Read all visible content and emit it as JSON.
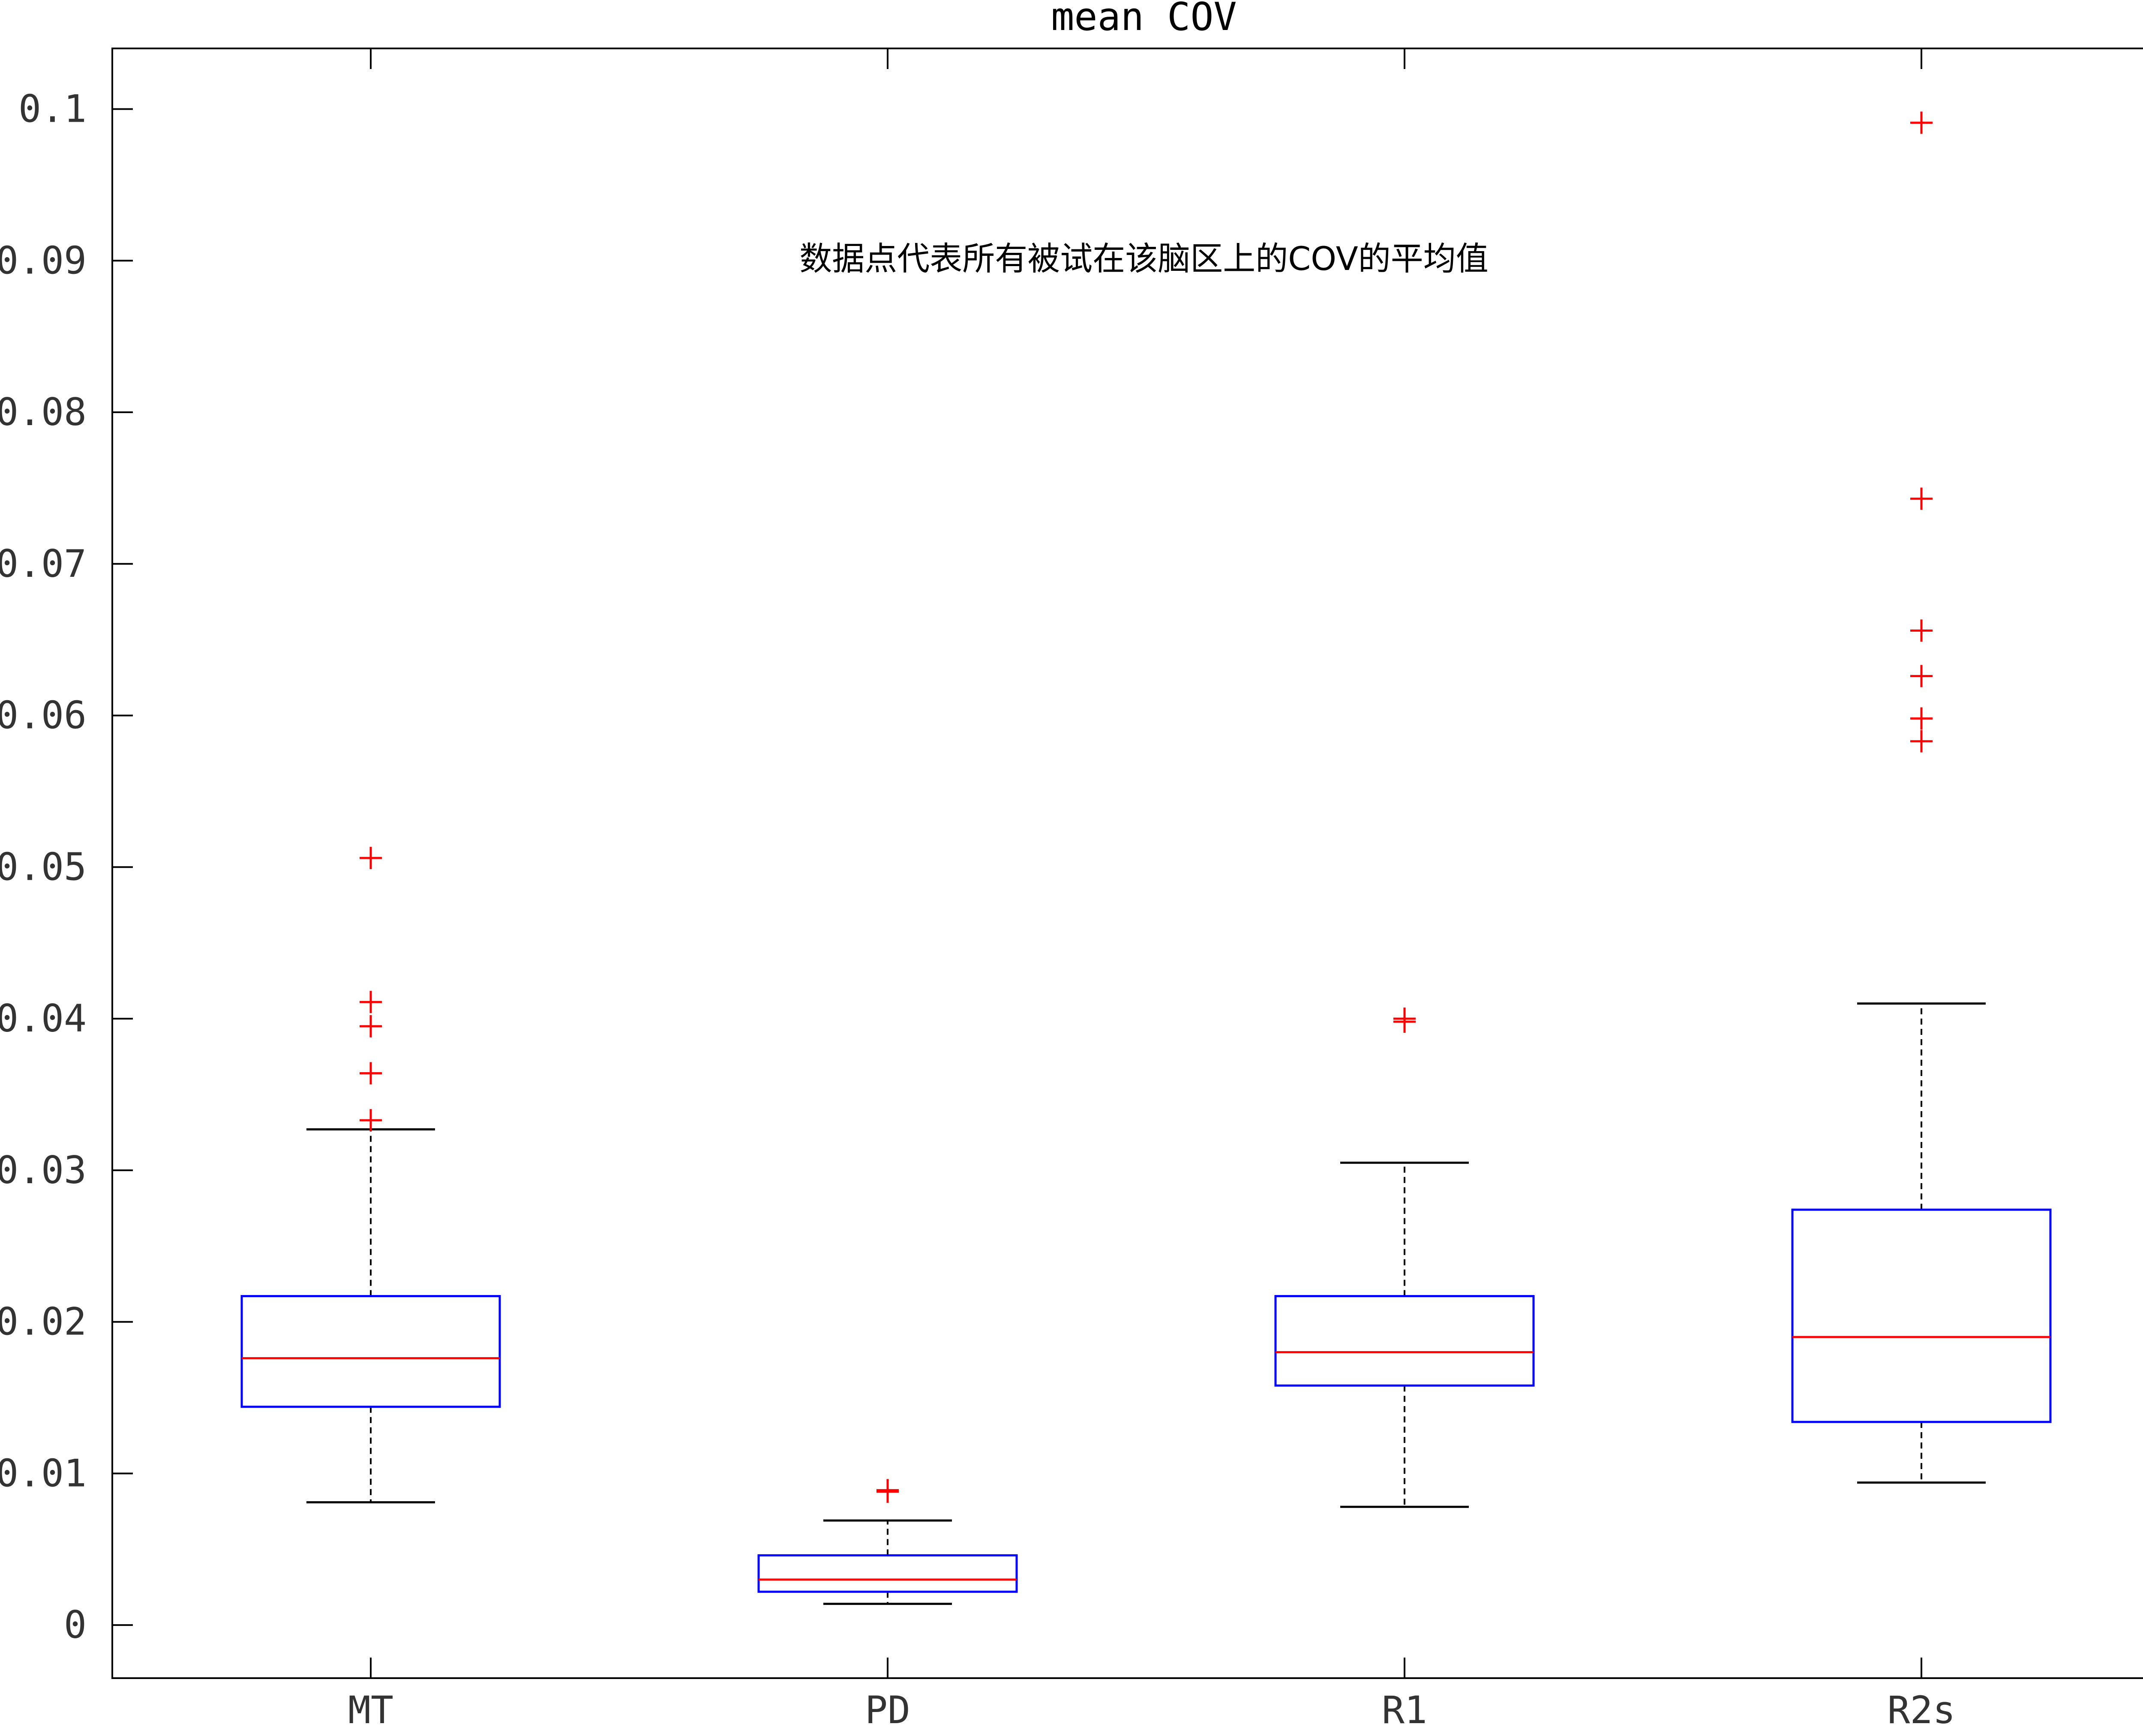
{
  "chart_data": {
    "type": "boxplot",
    "title": "mean COV",
    "annotation": "数据点代表所有被试在该脑区上的COV的平均值",
    "xlabel": "",
    "ylabel": "",
    "categories": [
      "MT",
      "PD",
      "R1",
      "R2s"
    ],
    "ylim": [
      -0.0035,
      0.104
    ],
    "yticks": [
      0,
      0.01,
      0.02,
      0.03,
      0.04,
      0.05,
      0.06,
      0.07,
      0.08,
      0.09,
      0.1
    ],
    "ytick_labels": [
      "0",
      "0.01",
      "0.02",
      "0.03",
      "0.04",
      "0.05",
      "0.06",
      "0.07",
      "0.08",
      "0.09",
      "0.1"
    ],
    "grid": false,
    "boxes": [
      {
        "name": "MT",
        "whisker_low": 0.0081,
        "q1": 0.0144,
        "median": 0.0176,
        "q3": 0.0217,
        "whisker_high": 0.0327,
        "outliers": [
          0.0333,
          0.0364,
          0.0395,
          0.0411,
          0.0506
        ]
      },
      {
        "name": "PD",
        "whisker_low": 0.0014,
        "q1": 0.0022,
        "median": 0.003,
        "q3": 0.0046,
        "whisker_high": 0.0069,
        "outliers": [
          0.0088,
          0.0089
        ]
      },
      {
        "name": "R1",
        "whisker_low": 0.0078,
        "q1": 0.0158,
        "median": 0.018,
        "q3": 0.0217,
        "whisker_high": 0.0305,
        "outliers": [
          0.0398,
          0.04
        ]
      },
      {
        "name": "R2s",
        "whisker_low": 0.0094,
        "q1": 0.0134,
        "median": 0.019,
        "q3": 0.0274,
        "whisker_high": 0.041,
        "outliers": [
          0.0583,
          0.0598,
          0.0626,
          0.0656,
          0.0743,
          0.0991
        ]
      }
    ],
    "colors": {
      "box": "#0000ff",
      "median": "#ff0000",
      "whisker": "#000000",
      "outlier": "#ff0000",
      "axes": "#000000"
    }
  }
}
